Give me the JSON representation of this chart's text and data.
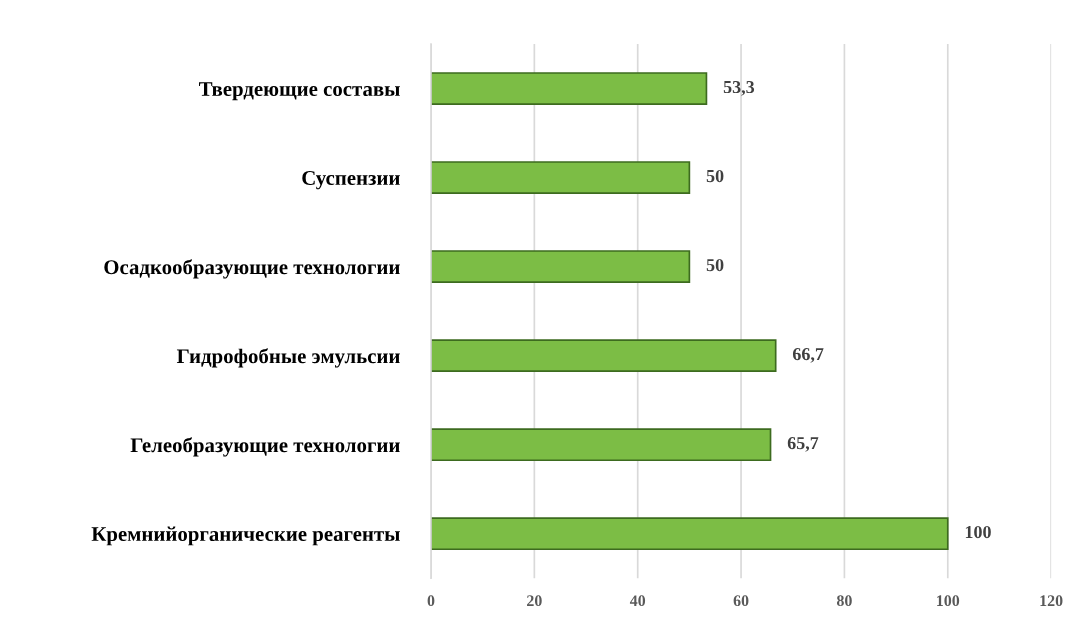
{
  "chart_data": {
    "type": "bar",
    "orientation": "horizontal",
    "categories": [
      "Твердеющие составы",
      "Суспензии",
      "Осадкообразующие технологии",
      "Гидрофобные эмульсии",
      "Гелеобразующие технологии",
      "Кремнийорганические реагенты"
    ],
    "values": [
      53.3,
      50,
      50,
      66.7,
      65.7,
      100
    ],
    "value_labels": [
      "53,3",
      "50",
      "50",
      "66,7",
      "65,7",
      "100"
    ],
    "color": "#7cbd45",
    "xlim": [
      0,
      120
    ],
    "xticks": [
      0,
      20,
      40,
      60,
      80,
      100,
      120
    ],
    "grid": "x"
  }
}
